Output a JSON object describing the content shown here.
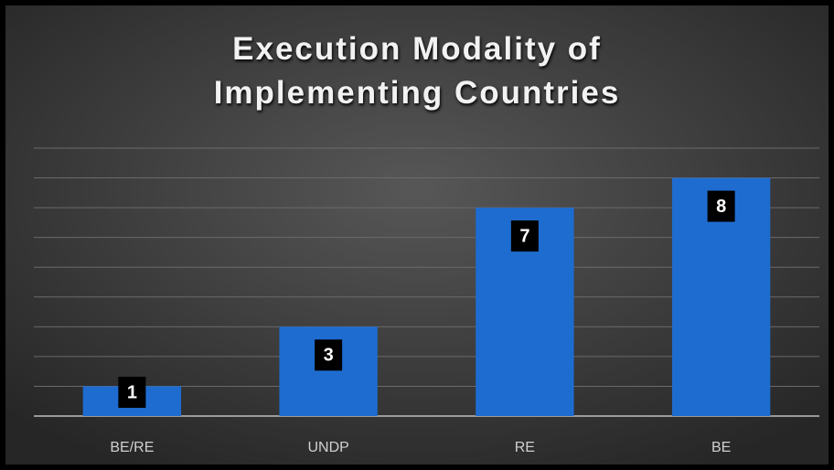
{
  "chart_data": {
    "type": "bar",
    "title": "Execution Modality of Implementing Countries",
    "categories": [
      "BE/RE",
      "UNDP",
      "RE",
      "BE"
    ],
    "values": [
      1,
      3,
      7,
      8
    ],
    "color": "#1e6cd0",
    "ylim": [
      0,
      9
    ],
    "yticks": [
      0,
      1,
      2,
      3,
      4,
      5,
      6,
      7,
      8,
      9
    ],
    "grid": true
  }
}
